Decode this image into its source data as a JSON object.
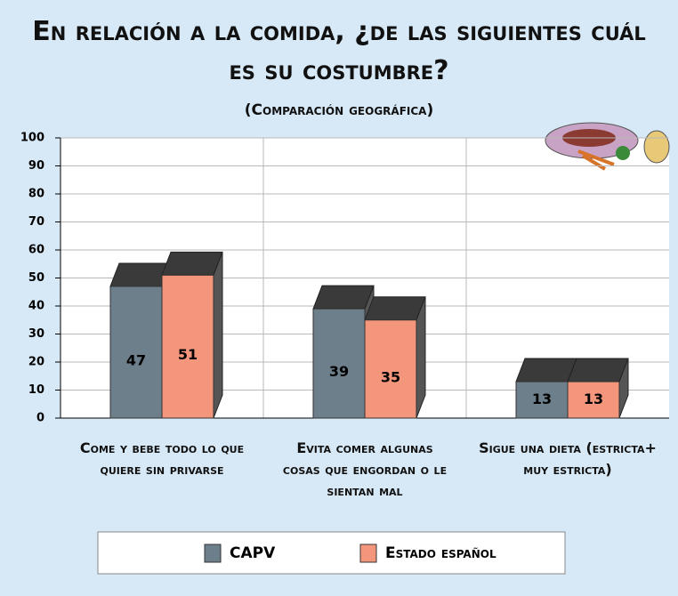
{
  "chart_data": {
    "type": "bar3d",
    "title": "En relación a la comida, ¿de las siguientes cuál es su costumbre?",
    "subtitle": "(Comparación geográfica)",
    "categories": [
      "Come y bebe todo lo que quiere sin privarse",
      "Evita comer algunas cosas que engordan o le sientan mal",
      "Sigue una dieta (estricta+ muy estricta)"
    ],
    "series": [
      {
        "name": "CAPV",
        "color": "#6c7f8b",
        "values": [
          47,
          39,
          13
        ]
      },
      {
        "name": "Estado español",
        "color": "#f4967b",
        "values": [
          51,
          35,
          13
        ]
      }
    ],
    "ylim": [
      0,
      100
    ],
    "yticks": [
      0,
      10,
      20,
      30,
      40,
      50,
      60,
      70,
      80,
      90,
      100
    ],
    "grid": true
  }
}
